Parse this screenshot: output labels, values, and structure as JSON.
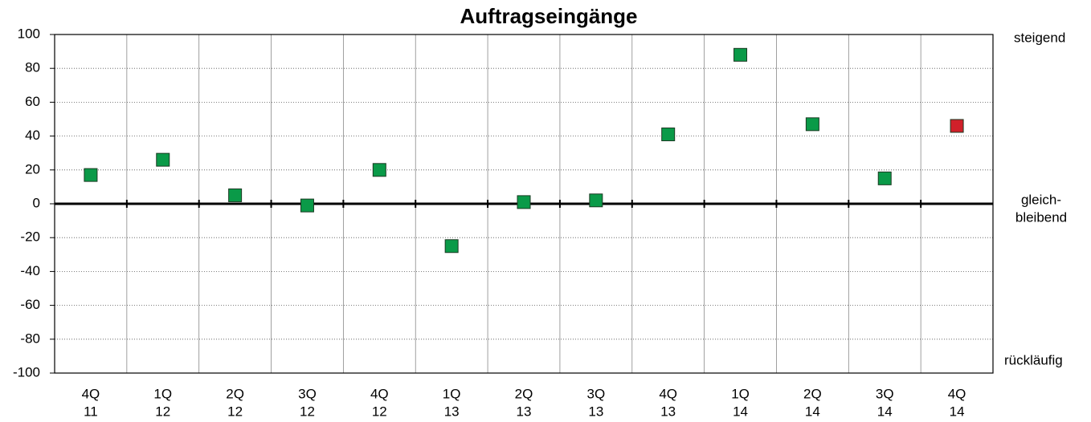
{
  "chart_data": {
    "type": "dot",
    "title": "Auftragseingänge",
    "categories": [
      [
        "4Q",
        "11"
      ],
      [
        "1Q",
        "12"
      ],
      [
        "2Q",
        "12"
      ],
      [
        "3Q",
        "12"
      ],
      [
        "4Q",
        "12"
      ],
      [
        "1Q",
        "13"
      ],
      [
        "2Q",
        "13"
      ],
      [
        "3Q",
        "13"
      ],
      [
        "4Q",
        "13"
      ],
      [
        "1Q",
        "14"
      ],
      [
        "2Q",
        "14"
      ],
      [
        "3Q",
        "14"
      ],
      [
        "4Q",
        "14"
      ]
    ],
    "values": [
      17,
      26,
      5,
      -1,
      20,
      -25,
      1,
      2,
      41,
      88,
      47,
      15,
      46
    ],
    "colors": [
      "#0a9a48",
      "#0a9a48",
      "#0a9a48",
      "#0a9a48",
      "#0a9a48",
      "#0a9a48",
      "#0a9a48",
      "#0a9a48",
      "#0a9a48",
      "#0a9a48",
      "#0a9a48",
      "#0a9a48",
      "#d0202a"
    ],
    "ylim": [
      -100,
      100
    ],
    "yticks": [
      -100,
      -80,
      -60,
      -40,
      -20,
      0,
      20,
      40,
      60,
      80,
      100
    ],
    "grid": true,
    "annotations": [
      "steigend",
      "gleich-",
      "bleibend",
      "rückläufig"
    ]
  }
}
